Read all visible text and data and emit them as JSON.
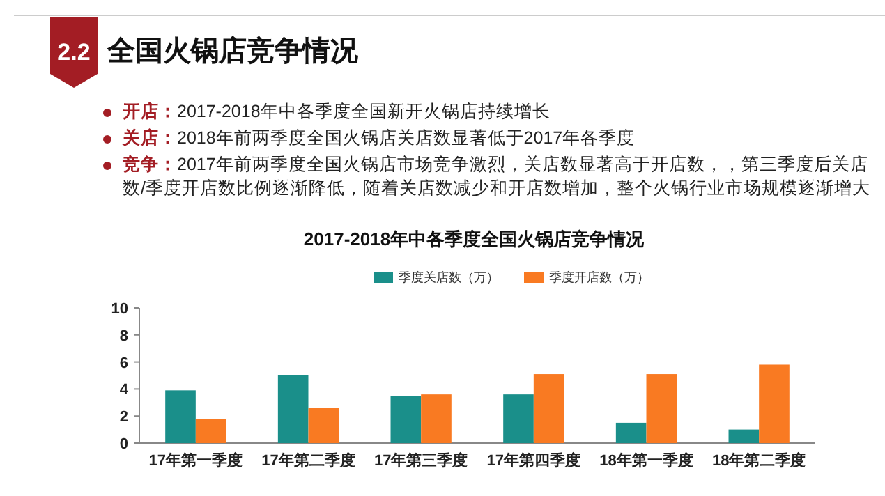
{
  "chart_data": {
    "type": "bar",
    "title": "2017-2018年中各季度全国火锅店竞争情况",
    "annotations": [
      "2.2",
      "全国火锅店竞争情况",
      "开店：2017-2018年中各季度全国新开火锅店持续增长",
      "关店：2018年前两季度全国火锅店关店数显著低于2017年各季度",
      "竞争：2017年前两季度全国火锅店市场竞争激烈，关店数显著高于开店数，，第三季度后关店数/季度开店数比例逐渐降低，随着关店数减少和开店数增加，整个火锅行业市场规模逐渐增大"
    ],
    "categories": [
      "17年第一季度",
      "17年第二季度",
      "17年第三季度",
      "17年第四季度",
      "18年第一季度",
      "18年第二季度"
    ],
    "series": [
      {
        "name": "季度关店数（万）",
        "color": "#1a8f8a",
        "values": [
          3.9,
          5.0,
          3.5,
          3.6,
          1.5,
          1.0
        ]
      },
      {
        "name": "季度开店数（万）",
        "color": "#f97a22",
        "values": [
          1.8,
          2.6,
          3.6,
          5.1,
          5.1,
          5.8
        ]
      }
    ],
    "ylim": [
      0,
      10
    ],
    "yticks": [
      0,
      2,
      4,
      6,
      8,
      10
    ],
    "grid": false,
    "legend": "top"
  }
}
